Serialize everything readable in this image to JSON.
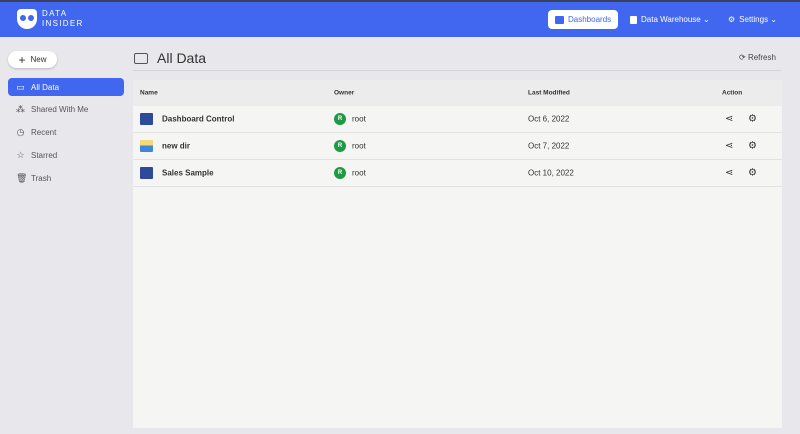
{
  "header": {
    "brand_line1": "DATA",
    "brand_line2": "INSIDER",
    "nav": [
      {
        "label": "Dashboards"
      },
      {
        "label": "Data Warehouse ⌄"
      },
      {
        "label": "Settings ⌄"
      }
    ]
  },
  "sidebar": {
    "new_label": "New",
    "items": [
      {
        "label": "All Data",
        "icon": "folder"
      },
      {
        "label": "Shared With Me",
        "icon": "share"
      },
      {
        "label": "Recent",
        "icon": "clock"
      },
      {
        "label": "Starred",
        "icon": "star"
      },
      {
        "label": "Trash",
        "icon": "trash"
      }
    ]
  },
  "main": {
    "title": "All Data",
    "refresh_label": "Refresh",
    "columns": [
      "Name",
      "Owner",
      "Last Modified",
      "Action"
    ],
    "rows": [
      {
        "name": "Dashboard Control",
        "type": "dashboard",
        "owner_initial": "R",
        "owner": "root",
        "modified": "Oct 6, 2022"
      },
      {
        "name": "new dir",
        "type": "folder",
        "owner_initial": "R",
        "owner": "root",
        "modified": "Oct 7, 2022"
      },
      {
        "name": "Sales Sample",
        "type": "dashboard",
        "owner_initial": "R",
        "owner": "root",
        "modified": "Oct 10, 2022"
      }
    ]
  },
  "colors": {
    "accent": "#4166f0",
    "owner_badge": "#1e9a45"
  }
}
